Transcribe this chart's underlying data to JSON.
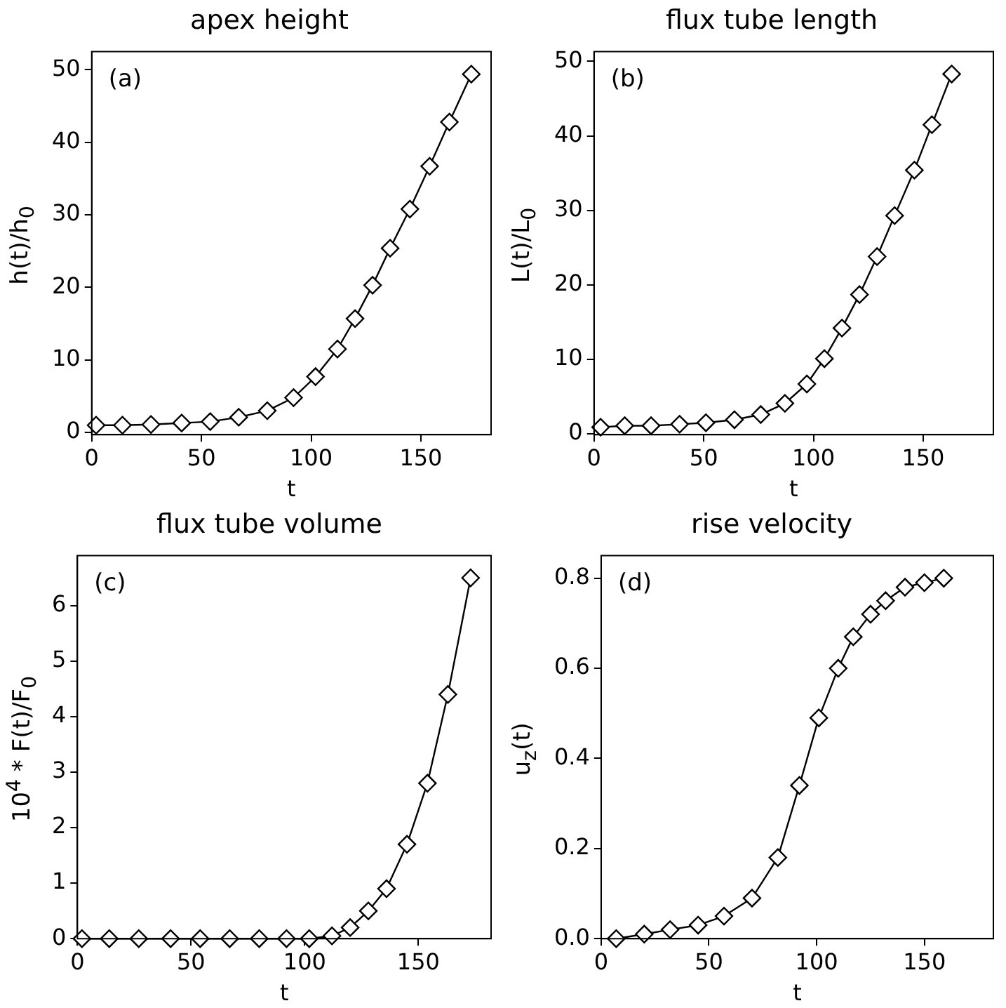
{
  "chart_data": [
    {
      "type": "line",
      "title": "apex height",
      "xlabel": "t",
      "ylabel": "h(t)/h$_{0}$",
      "annotations": [
        "(a)"
      ],
      "marker": "diamond",
      "line_style": "solid",
      "xlim": [
        0,
        182
      ],
      "xticks": [
        0,
        50,
        100,
        150
      ],
      "ylim": [
        -0.3,
        52.5
      ],
      "yticks": [
        0,
        10,
        20,
        30,
        40,
        50
      ],
      "series": [
        {
          "color": "#000000",
          "x": [
            2,
            14,
            27,
            41,
            54,
            67,
            80,
            92,
            102,
            112,
            120,
            128,
            136,
            145,
            154,
            163,
            173
          ],
          "values": [
            1.0,
            1.0,
            1.1,
            1.3,
            1.5,
            2.1,
            3.0,
            4.8,
            7.7,
            11.5,
            15.7,
            20.3,
            25.4,
            30.8,
            36.7,
            42.8,
            49.4
          ]
        }
      ]
    },
    {
      "type": "line",
      "title": "flux tube length",
      "xlabel": "t",
      "ylabel": "L(t)/L$_{0}$",
      "annotations": [
        "(b)"
      ],
      "marker": "diamond",
      "line_style": "solid",
      "xlim": [
        0,
        182
      ],
      "xticks": [
        0,
        50,
        100,
        150
      ],
      "ylim": [
        -0.1,
        51.3
      ],
      "yticks": [
        0,
        10,
        20,
        30,
        40,
        50
      ],
      "series": [
        {
          "color": "#000000",
          "x": [
            3,
            14,
            26,
            39,
            51,
            64,
            76,
            87,
            97,
            105,
            113,
            121,
            129,
            137,
            146,
            154,
            163
          ],
          "values": [
            0.9,
            1.1,
            1.1,
            1.3,
            1.5,
            1.9,
            2.6,
            4.1,
            6.7,
            10.1,
            14.2,
            18.7,
            23.8,
            29.3,
            35.4,
            41.5,
            48.3
          ]
        }
      ]
    },
    {
      "type": "line",
      "title": "flux tube volume",
      "xlabel": "t",
      "ylabel": "10$^{4}$ * F(t)/F$_{0}$",
      "annotations": [
        "(c)"
      ],
      "marker": "diamond",
      "line_style": "solid",
      "xlim": [
        0,
        182
      ],
      "xticks": [
        0,
        50,
        100,
        150
      ],
      "ylim": [
        0,
        6.9
      ],
      "yticks": [
        0,
        1,
        2,
        3,
        4,
        5,
        6
      ],
      "series": [
        {
          "color": "#000000",
          "x": [
            2,
            14,
            27,
            41,
            54,
            67,
            80,
            92,
            102,
            112,
            120,
            128,
            136,
            145,
            154,
            163,
            173
          ],
          "values": [
            0,
            0,
            0,
            0,
            0,
            0,
            0,
            0,
            0,
            0.05,
            0.2,
            0.5,
            0.9,
            1.7,
            2.8,
            4.4,
            6.5
          ]
        }
      ]
    },
    {
      "type": "line",
      "title": "rise velocity",
      "xlabel": "t",
      "ylabel": "u$_{z}$(t)",
      "annotations": [
        "(d)"
      ],
      "marker": "diamond",
      "line_style": "solid",
      "xlim": [
        0,
        182
      ],
      "xticks": [
        0,
        50,
        100,
        150
      ],
      "ylim": [
        0,
        0.85
      ],
      "yticks": [
        {
          "value": 0,
          "label": "0.0"
        },
        {
          "value": 0.2,
          "label": "0.2"
        },
        {
          "value": 0.4,
          "label": "0.4"
        },
        {
          "value": 0.6,
          "label": "0.6"
        },
        {
          "value": 0.8,
          "label": "0.8"
        }
      ],
      "series": [
        {
          "color": "#000000",
          "x": [
            7,
            20,
            32,
            45,
            57,
            70,
            82,
            92,
            101,
            110,
            117,
            125,
            132,
            141,
            150,
            159
          ],
          "values": [
            0.0,
            0.01,
            0.02,
            0.03,
            0.05,
            0.09,
            0.18,
            0.34,
            0.49,
            0.6,
            0.67,
            0.72,
            0.75,
            0.78,
            0.79,
            0.8
          ]
        }
      ]
    }
  ]
}
